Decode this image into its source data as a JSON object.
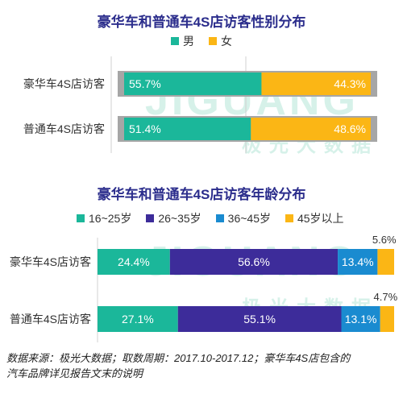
{
  "colors": {
    "male": "#1bb79a",
    "female": "#fbb615",
    "age_16_25": "#1bb79a",
    "age_26_35": "#3d2c9a",
    "age_36_45": "#1a8bd0",
    "age_45_plus": "#fbb615",
    "frame": "#a6a6a6",
    "title": "#2b2d8c"
  },
  "watermark": {
    "word": "JIGUANG",
    "cn": "极光大数据"
  },
  "footnote": {
    "line1": "数据来源：极光大数据；取数周期：2017.10-2017.12；豪华车4S店包含的",
    "line2": "汽车品牌详见报告文末的说明"
  },
  "chart_data": [
    {
      "type": "bar",
      "orientation": "horizontal-stacked-100",
      "title": "豪华车和普通车4S店访客性别分布",
      "categories": [
        "豪华车4S店访客",
        "普通车4S店访客"
      ],
      "series": [
        {
          "name": "男",
          "values": [
            55.7,
            51.4
          ],
          "labels": [
            "55.7%",
            "51.4%"
          ]
        },
        {
          "name": "女",
          "values": [
            44.3,
            48.6
          ],
          "labels": [
            "44.3%",
            "48.6%"
          ]
        }
      ],
      "legend_position": "top",
      "xlim": [
        0,
        100
      ]
    },
    {
      "type": "bar",
      "orientation": "horizontal-stacked-100",
      "title": "豪华车和普通车4S店访客年龄分布",
      "categories": [
        "豪华车4S店访客",
        "普通车4S店访客"
      ],
      "series": [
        {
          "name": "16~25岁",
          "values": [
            24.4,
            27.1
          ],
          "labels": [
            "24.4%",
            "27.1%"
          ]
        },
        {
          "name": "26~35岁",
          "values": [
            56.6,
            55.1
          ],
          "labels": [
            "56.6%",
            "55.1%"
          ]
        },
        {
          "name": "36~45岁",
          "values": [
            13.4,
            13.1
          ],
          "labels": [
            "13.4%",
            "13.1%"
          ]
        },
        {
          "name": "45岁以上",
          "values": [
            5.6,
            4.7
          ],
          "labels": [
            "5.6%",
            "4.7%"
          ]
        }
      ],
      "legend_position": "top",
      "xlim": [
        0,
        100
      ]
    }
  ]
}
